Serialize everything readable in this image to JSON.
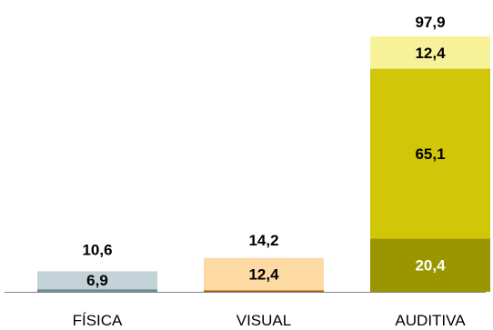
{
  "chart_data": {
    "type": "bar",
    "stacked": true,
    "categories": [
      "FÍSICA",
      "VISUAL",
      "AUDITIVA"
    ],
    "totals": [
      "10,6",
      "14,2",
      "97,9"
    ],
    "stacks": [
      {
        "category": "FÍSICA",
        "segments": [
          {
            "value": 1.0,
            "label": "",
            "color": "#6d8f93"
          },
          {
            "value": 6.9,
            "label": "6,9",
            "color": "#c3d2d6"
          },
          {
            "value": 2.7,
            "label": "",
            "color": "#ffffff"
          }
        ]
      },
      {
        "category": "VISUAL",
        "segments": [
          {
            "value": 0.6,
            "label": "",
            "color": "#b55a00"
          },
          {
            "value": 12.4,
            "label": "12,4",
            "color": "#fdd9a3"
          },
          {
            "value": 1.2,
            "label": "",
            "color": "#ffffff"
          }
        ]
      },
      {
        "category": "AUDITIVA",
        "segments": [
          {
            "value": 20.4,
            "label": "20,4",
            "color": "#9b9600"
          },
          {
            "value": 65.1,
            "label": "65,1",
            "color": "#d2c609"
          },
          {
            "value": 12.4,
            "label": "12,4",
            "color": "#f7f29a"
          }
        ]
      }
    ],
    "ylim": [
      0,
      97.9
    ],
    "grid": false,
    "legend": "none"
  },
  "colors": {
    "axis": "#808080",
    "text": "#000000",
    "label_on_dark": "#ffffff"
  }
}
